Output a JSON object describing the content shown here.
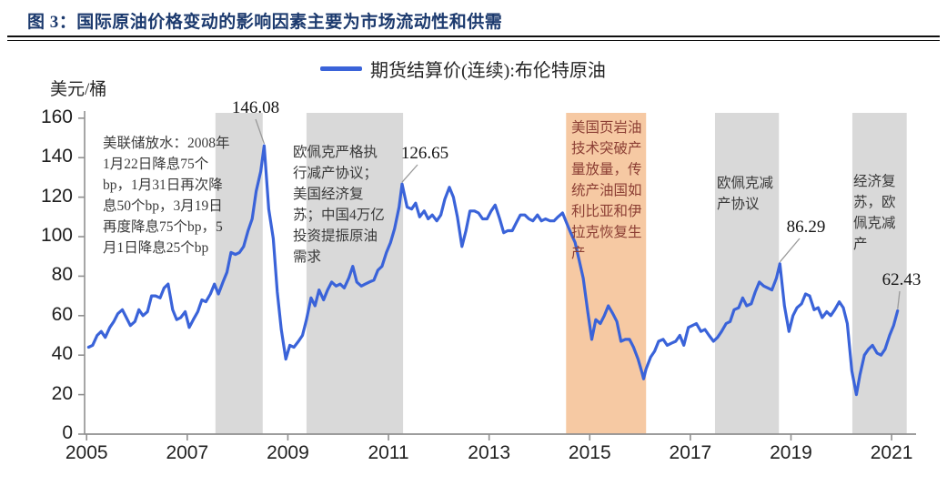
{
  "title": "图 3：国际原油价格变动的影响因素主要为市场流动性和供需",
  "legend": {
    "label": "期货结算价(连续):布伦特原油"
  },
  "colors": {
    "line": "#3a63d9",
    "band_gray": "#d9d9d9",
    "band_orange": "#f6c9a3",
    "title": "#1c3a6e",
    "annotation_default": "#3a3a3a",
    "annotation_red": "#8c3f34",
    "axis": "#8f8f8f",
    "leader": "#9a9a9a"
  },
  "annotations": [
    {
      "text": "美联储放水：2008年1月22日降息75个bp，1月31日再次降息50个bp，3月19日再度降息75个bp，5月1日降息25个bp",
      "tone": "default"
    },
    {
      "text": "欧佩克严格执行减产协议；美国经济复苏；中国4万亿投资提振原油需求",
      "tone": "default"
    },
    {
      "text": "美国页岩油技术突破产量放量，传统产油国如利比亚和伊拉克恢复生产",
      "tone": "red"
    },
    {
      "text": "欧佩克减产协议",
      "tone": "default"
    },
    {
      "text": "经济复苏，欧佩克减产",
      "tone": "default"
    }
  ],
  "chart_data": {
    "type": "line",
    "title": "国际原油价格变动的影响因素主要为市场流动性和供需",
    "ylabel": "美元/桶",
    "xlabel": "",
    "grid": false,
    "legend_position": "top-center",
    "xlim": [
      2004.96,
      2021.45
    ],
    "ylim": [
      0,
      162.7
    ],
    "x_ticks": [
      2005,
      2007,
      2009,
      2011,
      2013,
      2015,
      2017,
      2019,
      2021
    ],
    "y_ticks": [
      0,
      20,
      40,
      60,
      80,
      100,
      120,
      140,
      160
    ],
    "shaded_regions": [
      {
        "x0": 2007.56,
        "x1": 2008.5,
        "color": "#d9d9d9"
      },
      {
        "x0": 2009.37,
        "x1": 2011.29,
        "color": "#d9d9d9"
      },
      {
        "x0": 2014.53,
        "x1": 2016.12,
        "color": "#f6c9a3"
      },
      {
        "x0": 2017.49,
        "x1": 2018.76,
        "color": "#d9d9d9"
      },
      {
        "x0": 2020.22,
        "x1": 2021.3,
        "color": "#d9d9d9"
      }
    ],
    "point_labels": [
      {
        "text": "146.08",
        "x": 2008.53,
        "y": 146.08
      },
      {
        "text": "126.65",
        "x": 2011.27,
        "y": 126.65
      },
      {
        "text": "86.29",
        "x": 2018.78,
        "y": 86.29
      },
      {
        "text": "62.43",
        "x": 2021.12,
        "y": 62.43
      }
    ],
    "series": [
      {
        "name": "期货结算价(连续):布伦特原油",
        "points": [
          [
            2005.04,
            44
          ],
          [
            2005.12,
            45
          ],
          [
            2005.21,
            50
          ],
          [
            2005.29,
            52
          ],
          [
            2005.37,
            49
          ],
          [
            2005.46,
            54
          ],
          [
            2005.54,
            57
          ],
          [
            2005.62,
            61
          ],
          [
            2005.71,
            63
          ],
          [
            2005.79,
            59
          ],
          [
            2005.87,
            55
          ],
          [
            2005.96,
            57
          ],
          [
            2006.04,
            63
          ],
          [
            2006.12,
            60
          ],
          [
            2006.21,
            62
          ],
          [
            2006.29,
            70
          ],
          [
            2006.37,
            70
          ],
          [
            2006.46,
            69
          ],
          [
            2006.54,
            74
          ],
          [
            2006.62,
            76
          ],
          [
            2006.71,
            63
          ],
          [
            2006.79,
            58
          ],
          [
            2006.87,
            59
          ],
          [
            2006.96,
            62
          ],
          [
            2007.04,
            54
          ],
          [
            2007.12,
            58
          ],
          [
            2007.21,
            62
          ],
          [
            2007.29,
            68
          ],
          [
            2007.37,
            67
          ],
          [
            2007.46,
            71
          ],
          [
            2007.54,
            76
          ],
          [
            2007.62,
            71
          ],
          [
            2007.71,
            77
          ],
          [
            2007.79,
            82
          ],
          [
            2007.87,
            92
          ],
          [
            2007.96,
            91
          ],
          [
            2008.04,
            92
          ],
          [
            2008.12,
            95
          ],
          [
            2008.21,
            103
          ],
          [
            2008.29,
            109
          ],
          [
            2008.37,
            123
          ],
          [
            2008.46,
            133
          ],
          [
            2008.53,
            146.08
          ],
          [
            2008.62,
            114
          ],
          [
            2008.71,
            99
          ],
          [
            2008.79,
            72
          ],
          [
            2008.87,
            53
          ],
          [
            2008.96,
            38
          ],
          [
            2009.04,
            45
          ],
          [
            2009.12,
            44
          ],
          [
            2009.21,
            47
          ],
          [
            2009.29,
            50
          ],
          [
            2009.37,
            58
          ],
          [
            2009.46,
            69
          ],
          [
            2009.54,
            65
          ],
          [
            2009.62,
            73
          ],
          [
            2009.71,
            68
          ],
          [
            2009.79,
            73
          ],
          [
            2009.87,
            77
          ],
          [
            2009.96,
            75
          ],
          [
            2010.04,
            76
          ],
          [
            2010.12,
            74
          ],
          [
            2010.21,
            79
          ],
          [
            2010.29,
            85
          ],
          [
            2010.37,
            77
          ],
          [
            2010.46,
            75
          ],
          [
            2010.54,
            76
          ],
          [
            2010.62,
            77
          ],
          [
            2010.71,
            78
          ],
          [
            2010.79,
            83
          ],
          [
            2010.87,
            85
          ],
          [
            2010.96,
            92
          ],
          [
            2011.04,
            97
          ],
          [
            2011.12,
            104
          ],
          [
            2011.21,
            115
          ],
          [
            2011.27,
            126.65
          ],
          [
            2011.37,
            115
          ],
          [
            2011.46,
            114
          ],
          [
            2011.54,
            117
          ],
          [
            2011.62,
            110
          ],
          [
            2011.71,
            113
          ],
          [
            2011.79,
            109
          ],
          [
            2011.87,
            111
          ],
          [
            2011.96,
            108
          ],
          [
            2012.04,
            111
          ],
          [
            2012.12,
            119
          ],
          [
            2012.21,
            125
          ],
          [
            2012.29,
            120
          ],
          [
            2012.37,
            110
          ],
          [
            2012.46,
            95
          ],
          [
            2012.54,
            103
          ],
          [
            2012.62,
            113
          ],
          [
            2012.71,
            113
          ],
          [
            2012.79,
            112
          ],
          [
            2012.87,
            109
          ],
          [
            2012.96,
            109
          ],
          [
            2013.04,
            113
          ],
          [
            2013.12,
            116
          ],
          [
            2013.21,
            109
          ],
          [
            2013.29,
            102
          ],
          [
            2013.37,
            103
          ],
          [
            2013.46,
            103
          ],
          [
            2013.54,
            107
          ],
          [
            2013.62,
            111
          ],
          [
            2013.71,
            111
          ],
          [
            2013.79,
            109
          ],
          [
            2013.87,
            108
          ],
          [
            2013.96,
            111
          ],
          [
            2014.04,
            108
          ],
          [
            2014.12,
            109
          ],
          [
            2014.21,
            108
          ],
          [
            2014.29,
            108
          ],
          [
            2014.37,
            110
          ],
          [
            2014.46,
            112
          ],
          [
            2014.54,
            107
          ],
          [
            2014.62,
            102
          ],
          [
            2014.71,
            97
          ],
          [
            2014.79,
            88
          ],
          [
            2014.87,
            79
          ],
          [
            2014.96,
            62
          ],
          [
            2015.04,
            48
          ],
          [
            2015.12,
            58
          ],
          [
            2015.21,
            56
          ],
          [
            2015.29,
            60
          ],
          [
            2015.37,
            65
          ],
          [
            2015.46,
            61
          ],
          [
            2015.54,
            57
          ],
          [
            2015.62,
            47
          ],
          [
            2015.71,
            48
          ],
          [
            2015.79,
            48
          ],
          [
            2015.87,
            44
          ],
          [
            2015.96,
            38
          ],
          [
            2016.04,
            31
          ],
          [
            2016.07,
            28
          ],
          [
            2016.12,
            33
          ],
          [
            2016.21,
            39
          ],
          [
            2016.29,
            42
          ],
          [
            2016.37,
            47
          ],
          [
            2016.46,
            48
          ],
          [
            2016.54,
            45
          ],
          [
            2016.62,
            46
          ],
          [
            2016.71,
            47
          ],
          [
            2016.79,
            50
          ],
          [
            2016.87,
            45
          ],
          [
            2016.96,
            54
          ],
          [
            2017.04,
            55
          ],
          [
            2017.12,
            56
          ],
          [
            2017.21,
            52
          ],
          [
            2017.29,
            53
          ],
          [
            2017.37,
            50
          ],
          [
            2017.46,
            47
          ],
          [
            2017.54,
            49
          ],
          [
            2017.62,
            52
          ],
          [
            2017.71,
            56
          ],
          [
            2017.79,
            57
          ],
          [
            2017.87,
            63
          ],
          [
            2017.96,
            64
          ],
          [
            2018.04,
            69
          ],
          [
            2018.12,
            65
          ],
          [
            2018.21,
            66
          ],
          [
            2018.29,
            72
          ],
          [
            2018.37,
            77
          ],
          [
            2018.46,
            75
          ],
          [
            2018.54,
            74
          ],
          [
            2018.62,
            73
          ],
          [
            2018.71,
            79
          ],
          [
            2018.78,
            86.29
          ],
          [
            2018.87,
            65
          ],
          [
            2018.96,
            52
          ],
          [
            2019.04,
            60
          ],
          [
            2019.12,
            64
          ],
          [
            2019.21,
            66
          ],
          [
            2019.29,
            71
          ],
          [
            2019.37,
            70
          ],
          [
            2019.46,
            63
          ],
          [
            2019.54,
            64
          ],
          [
            2019.62,
            59
          ],
          [
            2019.71,
            62
          ],
          [
            2019.79,
            60
          ],
          [
            2019.87,
            63
          ],
          [
            2019.96,
            67
          ],
          [
            2020.04,
            64
          ],
          [
            2020.12,
            56
          ],
          [
            2020.21,
            32
          ],
          [
            2020.3,
            20
          ],
          [
            2020.37,
            30
          ],
          [
            2020.46,
            40
          ],
          [
            2020.54,
            43
          ],
          [
            2020.62,
            45
          ],
          [
            2020.71,
            41
          ],
          [
            2020.79,
            40
          ],
          [
            2020.87,
            43
          ],
          [
            2020.96,
            50
          ],
          [
            2021.04,
            55
          ],
          [
            2021.12,
            62.43
          ]
        ]
      }
    ]
  }
}
